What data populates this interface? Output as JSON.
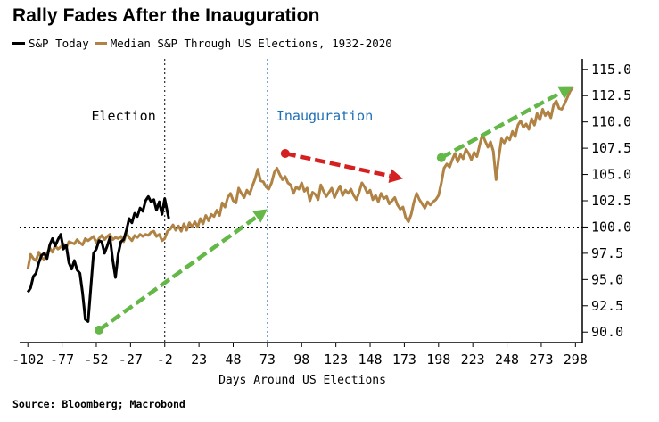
{
  "chart_data": {
    "type": "line",
    "title": "Rally Fades After the Inauguration",
    "xlabel": "Days Around US Elections",
    "ylabel": "",
    "xlim": [
      -108,
      303
    ],
    "ylim": [
      89,
      116
    ],
    "x_ticks": [
      -102,
      -77,
      -52,
      -27,
      -2,
      23,
      48,
      73,
      98,
      123,
      148,
      173,
      198,
      223,
      248,
      273,
      298
    ],
    "y_ticks": [
      90.0,
      92.5,
      95.0,
      97.5,
      100.0,
      102.5,
      105.0,
      107.5,
      110.0,
      112.5,
      115.0
    ],
    "reference_line_y": 100.0,
    "annotations": [
      {
        "text": "Election",
        "x": -2,
        "color": "#000000"
      },
      {
        "text": "Inauguration",
        "x": 73,
        "color": "#1f6fb8"
      }
    ],
    "arrows": [
      {
        "from": [
          -50,
          90.2
        ],
        "to": [
          73,
          101.7
        ],
        "color": "#63b847"
      },
      {
        "from": [
          86,
          107.0
        ],
        "to": [
          172,
          104.6
        ],
        "color": "#d42020"
      },
      {
        "from": [
          200,
          106.6
        ],
        "to": [
          296,
          113.4
        ],
        "color": "#63b847"
      }
    ],
    "series": [
      {
        "name": "S&P Today",
        "color": "#000000",
        "points": [
          [
            -102,
            93.8
          ],
          [
            -100,
            94.2
          ],
          [
            -98,
            95.3
          ],
          [
            -96,
            95.6
          ],
          [
            -94,
            96.6
          ],
          [
            -92,
            97.3
          ],
          [
            -90,
            97.5
          ],
          [
            -88,
            97.0
          ],
          [
            -86,
            98.3
          ],
          [
            -84,
            98.9
          ],
          [
            -82,
            98.2
          ],
          [
            -80,
            98.8
          ],
          [
            -78,
            99.3
          ],
          [
            -76,
            97.9
          ],
          [
            -74,
            98.3
          ],
          [
            -72,
            96.6
          ],
          [
            -70,
            96.0
          ],
          [
            -68,
            96.8
          ],
          [
            -66,
            95.9
          ],
          [
            -64,
            95.6
          ],
          [
            -62,
            93.7
          ],
          [
            -60,
            91.2
          ],
          [
            -58,
            91.0
          ],
          [
            -56,
            94.2
          ],
          [
            -54,
            97.5
          ],
          [
            -52,
            97.9
          ],
          [
            -50,
            98.7
          ],
          [
            -48,
            98.6
          ],
          [
            -46,
            97.5
          ],
          [
            -44,
            98.2
          ],
          [
            -42,
            99.0
          ],
          [
            -40,
            96.9
          ],
          [
            -38,
            95.2
          ],
          [
            -36,
            97.4
          ],
          [
            -34,
            98.6
          ],
          [
            -32,
            98.8
          ],
          [
            -30,
            99.7
          ],
          [
            -28,
            100.8
          ],
          [
            -26,
            100.4
          ],
          [
            -24,
            101.3
          ],
          [
            -22,
            101.0
          ],
          [
            -20,
            101.8
          ],
          [
            -18,
            101.5
          ],
          [
            -16,
            102.5
          ],
          [
            -14,
            102.9
          ],
          [
            -12,
            102.4
          ],
          [
            -10,
            102.6
          ],
          [
            -8,
            101.6
          ],
          [
            -6,
            102.4
          ],
          [
            -4,
            101.2
          ],
          [
            -2,
            102.7
          ],
          [
            0,
            101.4
          ],
          [
            1,
            100.8
          ]
        ]
      },
      {
        "name": "Median S&P Through US Elections, 1932-2020",
        "color": "#b08345",
        "points": [
          [
            -102,
            96.0
          ],
          [
            -100,
            97.4
          ],
          [
            -98,
            97.0
          ],
          [
            -96,
            96.8
          ],
          [
            -94,
            97.6
          ],
          [
            -92,
            97.1
          ],
          [
            -90,
            96.9
          ],
          [
            -88,
            97.5
          ],
          [
            -86,
            98.0
          ],
          [
            -84,
            97.6
          ],
          [
            -82,
            98.2
          ],
          [
            -80,
            97.9
          ],
          [
            -78,
            98.1
          ],
          [
            -76,
            98.4
          ],
          [
            -74,
            98.0
          ],
          [
            -72,
            98.6
          ],
          [
            -70,
            98.5
          ],
          [
            -68,
            98.4
          ],
          [
            -66,
            98.8
          ],
          [
            -64,
            98.5
          ],
          [
            -62,
            98.3
          ],
          [
            -60,
            98.9
          ],
          [
            -58,
            98.7
          ],
          [
            -56,
            98.9
          ],
          [
            -54,
            99.1
          ],
          [
            -52,
            98.5
          ],
          [
            -50,
            98.9
          ],
          [
            -48,
            99.2
          ],
          [
            -46,
            98.8
          ],
          [
            -44,
            99.1
          ],
          [
            -42,
            99.3
          ],
          [
            -40,
            98.8
          ],
          [
            -38,
            99.0
          ],
          [
            -36,
            98.9
          ],
          [
            -34,
            99.1
          ],
          [
            -32,
            98.6
          ],
          [
            -30,
            99.4
          ],
          [
            -28,
            99.0
          ],
          [
            -26,
            98.7
          ],
          [
            -24,
            99.2
          ],
          [
            -22,
            99.0
          ],
          [
            -20,
            99.3
          ],
          [
            -18,
            99.1
          ],
          [
            -16,
            99.3
          ],
          [
            -14,
            99.2
          ],
          [
            -12,
            99.5
          ],
          [
            -10,
            99.6
          ],
          [
            -8,
            99.1
          ],
          [
            -6,
            99.3
          ],
          [
            -4,
            98.7
          ],
          [
            -2,
            98.9
          ],
          [
            0,
            99.6
          ],
          [
            2,
            99.8
          ],
          [
            4,
            100.2
          ],
          [
            6,
            99.7
          ],
          [
            8,
            100.1
          ],
          [
            10,
            99.6
          ],
          [
            12,
            100.3
          ],
          [
            14,
            99.7
          ],
          [
            16,
            100.4
          ],
          [
            18,
            100.0
          ],
          [
            20,
            100.5
          ],
          [
            22,
            100.0
          ],
          [
            24,
            100.8
          ],
          [
            26,
            100.3
          ],
          [
            28,
            101.1
          ],
          [
            30,
            100.6
          ],
          [
            32,
            101.2
          ],
          [
            34,
            101.0
          ],
          [
            36,
            101.6
          ],
          [
            38,
            101.1
          ],
          [
            40,
            102.3
          ],
          [
            42,
            101.9
          ],
          [
            44,
            102.8
          ],
          [
            46,
            103.2
          ],
          [
            48,
            102.5
          ],
          [
            50,
            102.3
          ],
          [
            52,
            103.7
          ],
          [
            54,
            103.2
          ],
          [
            56,
            102.8
          ],
          [
            58,
            103.5
          ],
          [
            60,
            103.1
          ],
          [
            62,
            103.9
          ],
          [
            64,
            104.6
          ],
          [
            66,
            105.5
          ],
          [
            68,
            104.4
          ],
          [
            70,
            104.3
          ],
          [
            72,
            103.8
          ],
          [
            74,
            103.6
          ],
          [
            76,
            104.2
          ],
          [
            78,
            105.2
          ],
          [
            80,
            105.6
          ],
          [
            82,
            105.0
          ],
          [
            84,
            104.5
          ],
          [
            86,
            104.8
          ],
          [
            88,
            104.2
          ],
          [
            90,
            104.0
          ],
          [
            92,
            103.2
          ],
          [
            94,
            103.8
          ],
          [
            96,
            103.6
          ],
          [
            98,
            104.2
          ],
          [
            100,
            103.4
          ],
          [
            102,
            103.7
          ],
          [
            104,
            102.5
          ],
          [
            106,
            103.3
          ],
          [
            108,
            103.1
          ],
          [
            110,
            102.6
          ],
          [
            112,
            104.0
          ],
          [
            114,
            103.4
          ],
          [
            116,
            102.9
          ],
          [
            118,
            103.3
          ],
          [
            120,
            103.7
          ],
          [
            122,
            102.8
          ],
          [
            124,
            103.4
          ],
          [
            126,
            103.9
          ],
          [
            128,
            103.0
          ],
          [
            130,
            103.5
          ],
          [
            132,
            103.2
          ],
          [
            134,
            103.6
          ],
          [
            136,
            103.0
          ],
          [
            138,
            102.6
          ],
          [
            140,
            103.3
          ],
          [
            142,
            104.2
          ],
          [
            144,
            103.8
          ],
          [
            146,
            103.2
          ],
          [
            148,
            103.5
          ],
          [
            150,
            102.6
          ],
          [
            152,
            103.0
          ],
          [
            154,
            102.4
          ],
          [
            156,
            103.2
          ],
          [
            158,
            102.7
          ],
          [
            160,
            102.9
          ],
          [
            162,
            102.2
          ],
          [
            164,
            102.5
          ],
          [
            166,
            102.8
          ],
          [
            168,
            102.1
          ],
          [
            170,
            101.7
          ],
          [
            172,
            101.9
          ],
          [
            174,
            100.9
          ],
          [
            176,
            100.5
          ],
          [
            178,
            101.2
          ],
          [
            180,
            102.4
          ],
          [
            182,
            103.2
          ],
          [
            184,
            102.6
          ],
          [
            186,
            102.2
          ],
          [
            188,
            101.8
          ],
          [
            190,
            102.4
          ],
          [
            192,
            102.1
          ],
          [
            194,
            102.4
          ],
          [
            196,
            102.6
          ],
          [
            198,
            103.0
          ],
          [
            200,
            104.2
          ],
          [
            202,
            105.6
          ],
          [
            204,
            106.0
          ],
          [
            206,
            105.7
          ],
          [
            208,
            106.4
          ],
          [
            210,
            107.0
          ],
          [
            212,
            106.2
          ],
          [
            214,
            106.9
          ],
          [
            216,
            106.5
          ],
          [
            218,
            107.4
          ],
          [
            220,
            107.0
          ],
          [
            222,
            106.4
          ],
          [
            224,
            107.1
          ],
          [
            226,
            106.7
          ],
          [
            228,
            107.8
          ],
          [
            230,
            108.8
          ],
          [
            232,
            108.2
          ],
          [
            234,
            107.6
          ],
          [
            236,
            108.1
          ],
          [
            238,
            107.2
          ],
          [
            240,
            104.5
          ],
          [
            242,
            106.6
          ],
          [
            244,
            108.4
          ],
          [
            246,
            108.0
          ],
          [
            248,
            108.6
          ],
          [
            250,
            108.3
          ],
          [
            252,
            109.1
          ],
          [
            254,
            108.6
          ],
          [
            256,
            109.7
          ],
          [
            258,
            110.1
          ],
          [
            260,
            109.5
          ],
          [
            262,
            109.8
          ],
          [
            264,
            109.3
          ],
          [
            266,
            110.3
          ],
          [
            268,
            109.7
          ],
          [
            270,
            110.8
          ],
          [
            272,
            110.2
          ],
          [
            274,
            111.2
          ],
          [
            276,
            110.6
          ],
          [
            278,
            111.0
          ],
          [
            280,
            110.4
          ],
          [
            282,
            111.6
          ],
          [
            284,
            112.0
          ],
          [
            286,
            111.3
          ],
          [
            288,
            111.2
          ],
          [
            290,
            111.7
          ],
          [
            292,
            112.3
          ],
          [
            294,
            112.9
          ],
          [
            296,
            113.3
          ]
        ]
      }
    ]
  },
  "legend": [
    {
      "label": "S&P Today",
      "color": "#000000"
    },
    {
      "label": "Median S&P Through US Elections, 1932-2020",
      "color": "#b08345"
    }
  ],
  "source": "Source: Bloomberg; Macrobond"
}
